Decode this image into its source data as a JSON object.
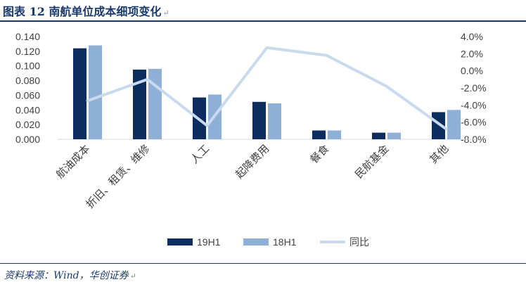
{
  "header": {
    "title": "图表 12    南航单位成本细项变化"
  },
  "footer": {
    "source": "资料来源：Wind，华创证券"
  },
  "colors": {
    "series_19h1": "#0d2d5e",
    "series_18h1": "#8fb0d6",
    "series_yoy": "#c9daee",
    "title": "#1a3a6e"
  },
  "chart_data": {
    "type": "bar",
    "categories": [
      "航油成本",
      "折旧、租赁、维修",
      "人工",
      "起降费用",
      "餐食",
      "民航基金",
      "其他"
    ],
    "series": [
      {
        "name": "19H1",
        "type": "bar",
        "axis": "left",
        "values": [
          0.124,
          0.095,
          0.057,
          0.051,
          0.012,
          0.009,
          0.037
        ]
      },
      {
        "name": "18H1",
        "type": "bar",
        "axis": "left",
        "values": [
          0.128,
          0.096,
          0.061,
          0.049,
          0.012,
          0.009,
          0.04
        ]
      },
      {
        "name": "同比",
        "type": "line",
        "axis": "right",
        "values": [
          -3.5,
          -1.0,
          -6.4,
          2.7,
          1.8,
          -1.8,
          -6.8
        ]
      }
    ],
    "y_left": {
      "min": 0,
      "max": 0.14,
      "step": 0.02,
      "tick_labels": [
        "0.000",
        "0.020",
        "0.040",
        "0.060",
        "0.080",
        "0.100",
        "0.120",
        "0.140"
      ]
    },
    "y_right": {
      "min": -8,
      "max": 4,
      "step": 2,
      "tick_labels": [
        "-8.0%",
        "-6.0%",
        "-4.0%",
        "-2.0%",
        "0.0%",
        "2.0%",
        "4.0%"
      ]
    },
    "legend": {
      "position": "bottom",
      "entries": [
        "19H1",
        "18H1",
        "同比"
      ]
    },
    "grid": false
  }
}
